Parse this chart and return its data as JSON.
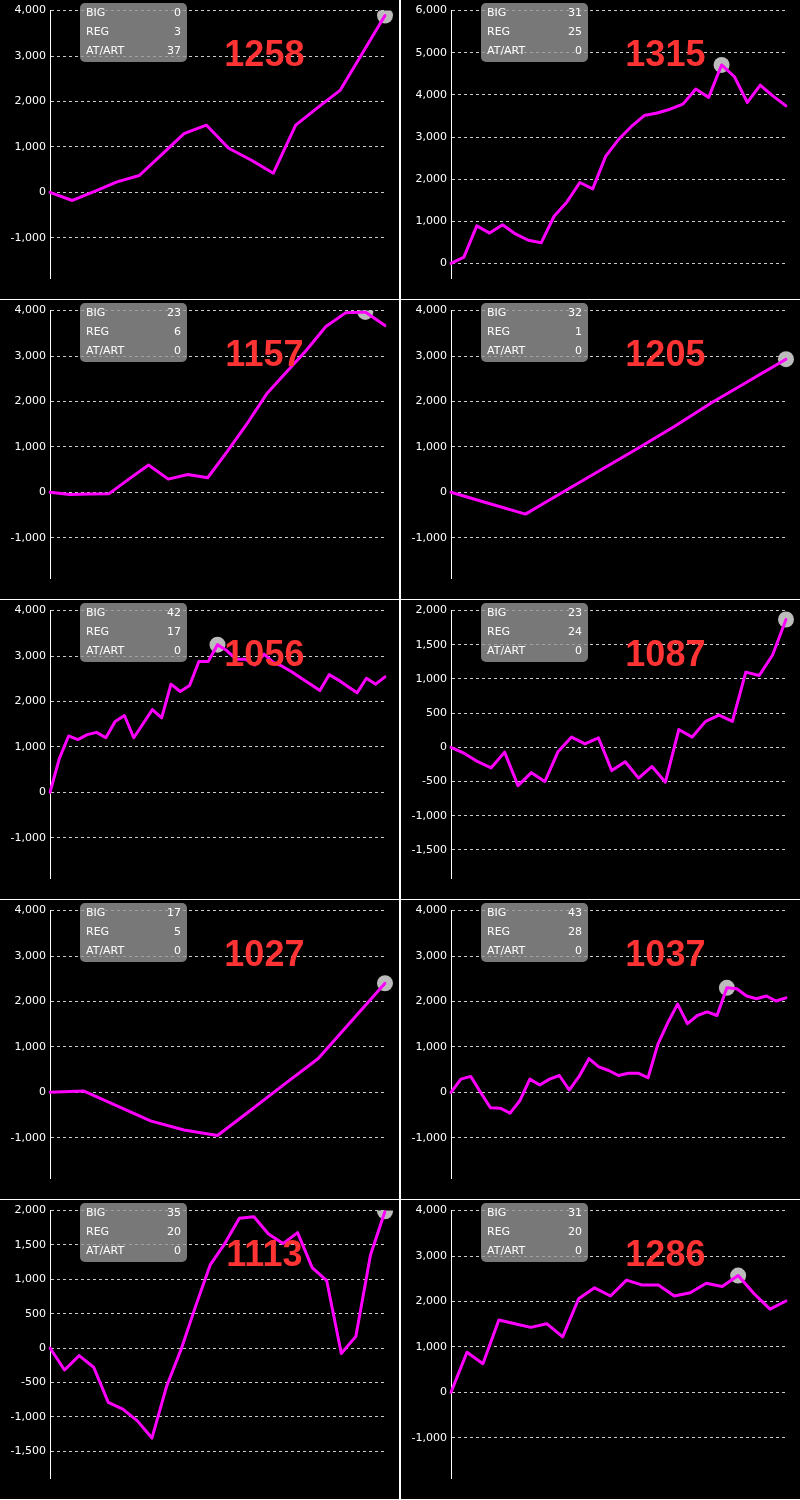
{
  "chart_data": [
    {
      "type": "line",
      "title": "1258",
      "annotations": [
        "BIG",
        "0",
        "REG",
        "3",
        "AT/ART",
        "37"
      ],
      "categories": [
        null,
        null,
        null,
        null,
        null,
        null,
        null,
        null,
        null,
        null,
        null,
        null,
        null,
        null,
        null,
        null
      ],
      "ylim": [
        -1900,
        4000
      ],
      "yticks": [
        {
          "value": -1000,
          "label": "-1,000"
        },
        0,
        {
          "value": 1000,
          "label": "1,000"
        },
        {
          "value": 2000,
          "label": "2,000"
        },
        {
          "value": 3000,
          "label": "3,000"
        },
        {
          "value": 4000,
          "label": "4,000"
        }
      ],
      "grid": "y",
      "legend": false,
      "marker": "none",
      "series": [
        {
          "color": "#ff00ff",
          "values": [
            0,
            -180,
            20,
            230,
            370,
            830,
            1290,
            1480,
            970,
            710,
            420,
            1480,
            1870,
            2250,
            3070,
            3890
          ]
        },
        {
          "type": "scatter",
          "color": "#bbbbbb",
          "marker": "circle",
          "values": [
            null,
            null,
            null,
            null,
            null,
            null,
            null,
            null,
            null,
            null,
            null,
            null,
            null,
            null,
            null,
            3890
          ]
        }
      ]
    },
    {
      "type": "line",
      "title": "1315",
      "annotations": [
        "BIG",
        "31",
        "REG",
        "25",
        "AT/ART",
        "0"
      ],
      "categories": [
        null,
        null,
        null,
        null,
        null,
        null,
        null,
        null,
        null,
        null,
        null,
        null,
        null,
        null,
        null,
        null,
        null,
        null,
        null,
        null,
        null,
        null,
        null,
        null,
        null,
        null,
        null
      ],
      "ylim": [
        -360,
        6000
      ],
      "yticks": [
        0,
        {
          "value": 1000,
          "label": "1,000"
        },
        {
          "value": 2000,
          "label": "2,000"
        },
        {
          "value": 3000,
          "label": "3,000"
        },
        {
          "value": 4000,
          "label": "4,000"
        },
        {
          "value": 5000,
          "label": "5,000"
        },
        {
          "value": 6000,
          "label": "6,000"
        }
      ],
      "grid": "y",
      "legend": false,
      "marker": "none",
      "series": [
        {
          "color": "#ff00ff",
          "values": [
            0,
            150,
            890,
            720,
            920,
            700,
            550,
            490,
            1120,
            1460,
            1920,
            1770,
            2540,
            2940,
            3250,
            3510,
            3570,
            3660,
            3780,
            4140,
            3940,
            4710,
            4430,
            3820,
            4230,
            3970,
            3740
          ]
        },
        {
          "type": "scatter",
          "color": "#bbbbbb",
          "marker": "circle",
          "values": [
            null,
            null,
            null,
            null,
            null,
            null,
            null,
            null,
            null,
            null,
            null,
            null,
            null,
            null,
            null,
            null,
            null,
            null,
            null,
            null,
            null,
            4710,
            null,
            null,
            null,
            null,
            null
          ]
        }
      ]
    },
    {
      "type": "line",
      "title": "1157",
      "annotations": [
        "BIG",
        "23",
        "REG",
        "6",
        "AT/ART",
        "0"
      ],
      "categories": [
        null,
        null,
        null,
        null,
        null,
        null,
        null,
        null,
        null,
        null,
        null,
        null,
        null,
        null,
        null,
        null,
        null,
        null
      ],
      "ylim": [
        -1900,
        4000
      ],
      "yticks": [
        {
          "value": -1000,
          "label": "-1,000"
        },
        0,
        {
          "value": 1000,
          "label": "1,000"
        },
        {
          "value": 2000,
          "label": "2,000"
        },
        {
          "value": 3000,
          "label": "3,000"
        },
        {
          "value": 4000,
          "label": "4,000"
        }
      ],
      "grid": "y",
      "legend": false,
      "marker": "none",
      "series": [
        {
          "color": "#ff00ff",
          "values": [
            0,
            -50,
            -40,
            -30,
            290,
            600,
            290,
            390,
            320,
            900,
            1510,
            2170,
            2650,
            3120,
            3650,
            3950,
            3970,
            3670
          ]
        },
        {
          "type": "scatter",
          "color": "#bbbbbb",
          "marker": "circle",
          "values": [
            null,
            null,
            null,
            null,
            null,
            null,
            null,
            null,
            null,
            null,
            null,
            null,
            null,
            null,
            null,
            null,
            3970,
            null
          ]
        }
      ]
    },
    {
      "type": "line",
      "title": "1205",
      "annotations": [
        "BIG",
        "32",
        "REG",
        "1",
        "AT/ART",
        "0"
      ],
      "categories": [
        null,
        null,
        null,
        null,
        null,
        null,
        null,
        null,
        null,
        null
      ],
      "ylim": [
        -1900,
        4000
      ],
      "yticks": [
        {
          "value": -1000,
          "label": "-1,000"
        },
        0,
        {
          "value": 1000,
          "label": "1,000"
        },
        {
          "value": 2000,
          "label": "2,000"
        },
        {
          "value": 3000,
          "label": "3,000"
        },
        {
          "value": 4000,
          "label": "4,000"
        }
      ],
      "grid": "y",
      "legend": false,
      "marker": "none",
      "series": [
        {
          "color": "#ff00ff",
          "values": [
            0,
            -240,
            -480,
            0,
            480,
            960,
            1450,
            1970,
            2450,
            2930
          ]
        },
        {
          "type": "scatter",
          "color": "#bbbbbb",
          "marker": "circle",
          "values": [
            null,
            null,
            null,
            null,
            null,
            null,
            null,
            null,
            null,
            2930
          ]
        }
      ]
    },
    {
      "type": "line",
      "title": "1056",
      "annotations": [
        "BIG",
        "42",
        "REG",
        "17",
        "AT/ART",
        "0"
      ],
      "categories": [
        null,
        null,
        null,
        null,
        null,
        null,
        null,
        null,
        null,
        null,
        null,
        null,
        null,
        null,
        null,
        null,
        null,
        null,
        null,
        null,
        null,
        null,
        null,
        null,
        null,
        null,
        null,
        null,
        null,
        null,
        null,
        null,
        null,
        null,
        null,
        null,
        null
      ],
      "ylim": [
        -1900,
        4000
      ],
      "yticks": [
        {
          "value": -1000,
          "label": "-1,000"
        },
        0,
        {
          "value": 1000,
          "label": "1,000"
        },
        {
          "value": 2000,
          "label": "2,000"
        },
        {
          "value": 3000,
          "label": "3,000"
        },
        {
          "value": 4000,
          "label": "4,000"
        }
      ],
      "grid": "y",
      "legend": false,
      "marker": "none",
      "series": [
        {
          "color": "#ff00ff",
          "values": [
            0,
            740,
            1240,
            1160,
            1270,
            1320,
            1200,
            1560,
            1690,
            1200,
            1510,
            1820,
            1640,
            2380,
            2220,
            2350,
            2880,
            2880,
            3250,
            3120,
            2930,
            2930,
            2800,
            3040,
            2860,
            2770,
            2650,
            2510,
            2380,
            2240,
            2590,
            2470,
            2330,
            2190,
            2510,
            2380,
            2540
          ]
        },
        {
          "type": "scatter",
          "color": "#bbbbbb",
          "marker": "circle",
          "values": [
            null,
            null,
            null,
            null,
            null,
            null,
            null,
            null,
            null,
            null,
            null,
            null,
            null,
            null,
            null,
            null,
            null,
            null,
            3250,
            null,
            null,
            null,
            null,
            null,
            null,
            null,
            null,
            null,
            null,
            null,
            null,
            null,
            null,
            null,
            null,
            null,
            null
          ]
        }
      ]
    },
    {
      "type": "line",
      "title": "1087",
      "annotations": [
        "BIG",
        "23",
        "REG",
        "24",
        "AT/ART",
        "0"
      ],
      "categories": [
        null,
        null,
        null,
        null,
        null,
        null,
        null,
        null,
        null,
        null,
        null,
        null,
        null,
        null,
        null,
        null,
        null,
        null,
        null,
        null,
        null,
        null,
        null,
        null,
        null,
        null
      ],
      "ylim": [
        -1920,
        2000
      ],
      "yticks": [
        {
          "value": -1500,
          "label": "-1,500"
        },
        {
          "value": -1000,
          "label": "-1,000"
        },
        -500,
        0,
        500,
        {
          "value": 1000,
          "label": "1,000"
        },
        {
          "value": 1500,
          "label": "1,500"
        },
        {
          "value": 2000,
          "label": "2,000"
        }
      ],
      "grid": "y",
      "legend": false,
      "marker": "none",
      "series": [
        {
          "color": "#ff00ff",
          "values": [
            0,
            -90,
            -210,
            -300,
            -70,
            -560,
            -370,
            -500,
            -60,
            150,
            50,
            140,
            -340,
            -210,
            -450,
            -280,
            -510,
            260,
            150,
            380,
            470,
            380,
            1100,
            1050,
            1350,
            1870
          ]
        },
        {
          "type": "scatter",
          "color": "#bbbbbb",
          "marker": "circle",
          "values": [
            null,
            null,
            null,
            null,
            null,
            null,
            null,
            null,
            null,
            null,
            null,
            null,
            null,
            null,
            null,
            null,
            null,
            null,
            null,
            null,
            null,
            null,
            null,
            null,
            null,
            1870
          ]
        }
      ]
    },
    {
      "type": "line",
      "title": "1027",
      "annotations": [
        "BIG",
        "17",
        "REG",
        "5",
        "AT/ART",
        "0"
      ],
      "categories": [
        null,
        null,
        null,
        null,
        null,
        null,
        null,
        null,
        null,
        null,
        null
      ],
      "ylim": [
        -1900,
        4000
      ],
      "yticks": [
        {
          "value": -1000,
          "label": "-1,000"
        },
        0,
        {
          "value": 1000,
          "label": "1,000"
        },
        {
          "value": 2000,
          "label": "2,000"
        },
        {
          "value": 3000,
          "label": "3,000"
        },
        {
          "value": 4000,
          "label": "4,000"
        }
      ],
      "grid": "y",
      "legend": false,
      "marker": "none",
      "series": [
        {
          "color": "#ff00ff",
          "values": [
            0,
            30,
            -300,
            -630,
            -830,
            -950,
            -390,
            180,
            740,
            1570,
            2400
          ]
        },
        {
          "type": "scatter",
          "color": "#bbbbbb",
          "marker": "circle",
          "values": [
            null,
            null,
            null,
            null,
            null,
            null,
            null,
            null,
            null,
            null,
            2400
          ]
        }
      ]
    },
    {
      "type": "line",
      "title": "1037",
      "annotations": [
        "BIG",
        "43",
        "REG",
        "28",
        "AT/ART",
        "0"
      ],
      "categories": [
        null,
        null,
        null,
        null,
        null,
        null,
        null,
        null,
        null,
        null,
        null,
        null,
        null,
        null,
        null,
        null,
        null,
        null,
        null,
        null,
        null,
        null,
        null,
        null,
        null,
        null,
        null,
        null,
        null,
        null,
        null,
        null,
        null,
        null,
        null
      ],
      "ylim": [
        -1900,
        4000
      ],
      "yticks": [
        {
          "value": -1000,
          "label": "-1,000"
        },
        0,
        {
          "value": 1000,
          "label": "1,000"
        },
        {
          "value": 2000,
          "label": "2,000"
        },
        {
          "value": 3000,
          "label": "3,000"
        },
        {
          "value": 4000,
          "label": "4,000"
        }
      ],
      "grid": "y",
      "legend": false,
      "marker": "none",
      "series": [
        {
          "color": "#ff00ff",
          "values": [
            0,
            290,
            350,
            0,
            -340,
            -350,
            -460,
            -180,
            290,
            160,
            290,
            370,
            50,
            350,
            740,
            560,
            480,
            370,
            420,
            420,
            320,
            1060,
            1530,
            1940,
            1510,
            1690,
            1770,
            1690,
            2300,
            2280,
            2120,
            2060,
            2120,
            2010,
            2080
          ]
        },
        {
          "type": "scatter",
          "color": "#bbbbbb",
          "marker": "circle",
          "values": [
            null,
            null,
            null,
            null,
            null,
            null,
            null,
            null,
            null,
            null,
            null,
            null,
            null,
            null,
            null,
            null,
            null,
            null,
            null,
            null,
            null,
            null,
            null,
            null,
            null,
            null,
            null,
            null,
            2300,
            null,
            null,
            null,
            null,
            null,
            null
          ]
        }
      ]
    },
    {
      "type": "line",
      "title": "1113",
      "annotations": [
        "BIG",
        "35",
        "REG",
        "20",
        "AT/ART",
        "0"
      ],
      "categories": [
        null,
        null,
        null,
        null,
        null,
        null,
        null,
        null,
        null,
        null,
        null,
        null,
        null,
        null,
        null,
        null,
        null,
        null,
        null,
        null,
        null,
        null,
        null,
        null
      ],
      "ylim": [
        -1900,
        2000
      ],
      "yticks": [
        {
          "value": -1500,
          "label": "-1,500"
        },
        {
          "value": -1000,
          "label": "-1,000"
        },
        -500,
        0,
        500,
        {
          "value": 1000,
          "label": "1,000"
        },
        {
          "value": 1500,
          "label": "1,500"
        },
        {
          "value": 2000,
          "label": "2,000"
        }
      ],
      "grid": "y",
      "legend": false,
      "marker": "none",
      "series": [
        {
          "color": "#ff00ff",
          "values": [
            0,
            -320,
            -110,
            -280,
            -790,
            -890,
            -1060,
            -1310,
            -560,
            -20,
            610,
            1210,
            1520,
            1890,
            1910,
            1660,
            1520,
            1680,
            1170,
            980,
            -80,
            170,
            1350,
            1990
          ]
        },
        {
          "type": "scatter",
          "color": "#bbbbbb",
          "marker": "circle",
          "values": [
            null,
            null,
            null,
            null,
            null,
            null,
            null,
            null,
            null,
            null,
            null,
            null,
            null,
            null,
            null,
            null,
            null,
            null,
            null,
            null,
            null,
            null,
            null,
            1990
          ]
        }
      ]
    },
    {
      "type": "line",
      "title": "1286",
      "annotations": [
        "BIG",
        "31",
        "REG",
        "20",
        "AT/ART",
        "0"
      ],
      "categories": [
        null,
        null,
        null,
        null,
        null,
        null,
        null,
        null,
        null,
        null,
        null,
        null,
        null,
        null,
        null,
        null,
        null,
        null,
        null,
        null,
        null,
        null
      ],
      "ylim": [
        -1900,
        4000
      ],
      "yticks": [
        {
          "value": -1000,
          "label": "-1,000"
        },
        0,
        {
          "value": 1000,
          "label": "1,000"
        },
        {
          "value": 2000,
          "label": "2,000"
        },
        {
          "value": 3000,
          "label": "3,000"
        },
        {
          "value": 4000,
          "label": "4,000"
        }
      ],
      "grid": "y",
      "legend": false,
      "marker": "none",
      "series": [
        {
          "color": "#ff00ff",
          "values": [
            0,
            880,
            630,
            1590,
            1510,
            1430,
            1510,
            1220,
            2060,
            2300,
            2120,
            2470,
            2360,
            2360,
            2120,
            2190,
            2400,
            2330,
            2570,
            2170,
            1830,
            2010
          ]
        },
        {
          "type": "scatter",
          "color": "#bbbbbb",
          "marker": "circle",
          "values": [
            null,
            null,
            null,
            null,
            null,
            null,
            null,
            null,
            null,
            null,
            null,
            null,
            null,
            null,
            null,
            null,
            null,
            null,
            2570,
            null,
            null,
            null
          ]
        }
      ]
    }
  ]
}
